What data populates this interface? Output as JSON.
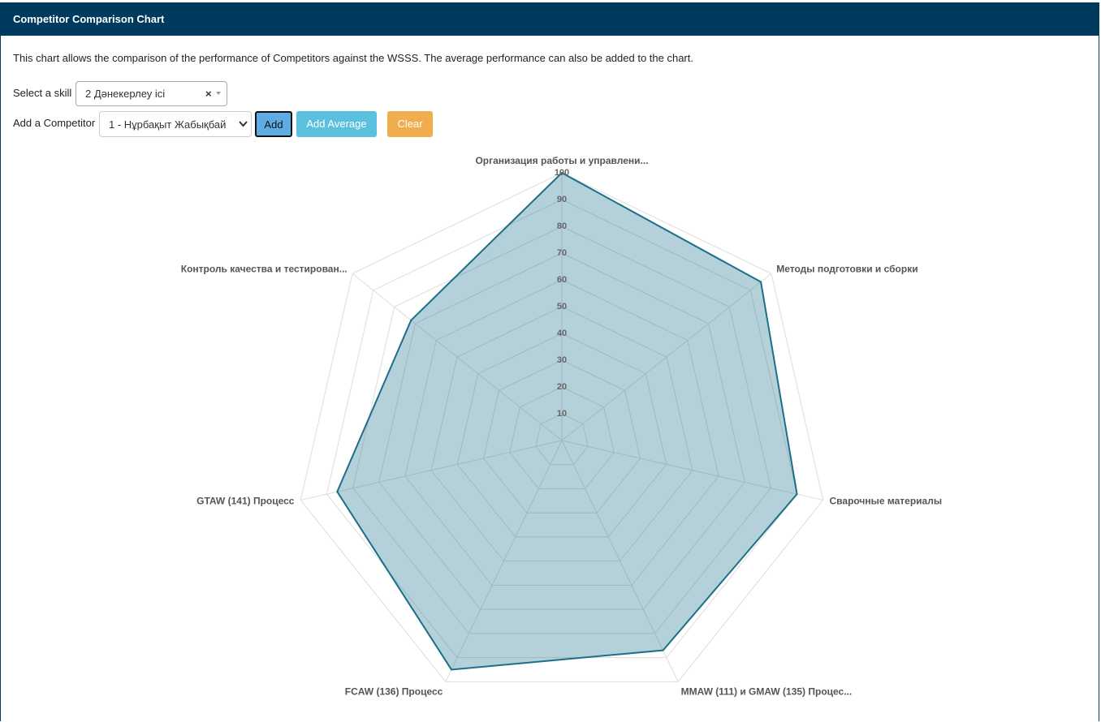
{
  "header": {
    "title": "Competitor Comparison Chart"
  },
  "description": "This chart allows the comparison of the performance of Competitors against the WSSS. The average performance can also be added to the chart.",
  "controls": {
    "skill_label": "Select a skill",
    "skill_value": "2 Дәнекерлеу ісі",
    "skill_clear": "×",
    "competitor_label": "Add a Competitor",
    "competitor_value": "1 - Нұрбақыт Жабықбай",
    "buttons": [
      "Add",
      "Add Average",
      "Clear"
    ]
  },
  "chart_data": {
    "type": "radar",
    "categories": [
      "Организация работы и управлени...",
      "Методы подготовки и сборки",
      "Сварочные материалы",
      "MMAW (111) и GMAW (135) Процес...",
      "FCAW (136) Процесс",
      "GTAW (141) Процесс",
      "Контроль качества и тестирован..."
    ],
    "values": [
      100,
      95,
      90,
      87,
      95,
      86,
      72
    ],
    "color": "#1b6f8a",
    "rlim": [
      0,
      100
    ],
    "rticks": [
      10,
      20,
      30,
      40,
      50,
      60,
      70,
      80,
      90,
      100
    ],
    "grid": true
  }
}
